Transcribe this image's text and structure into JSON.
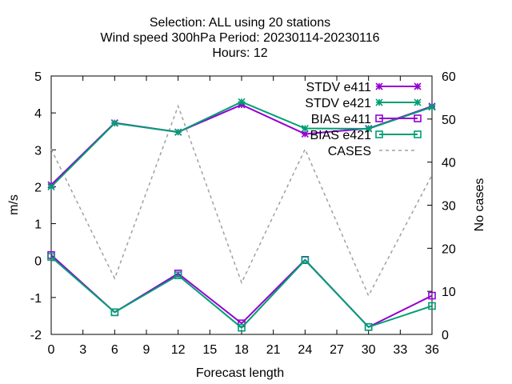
{
  "chart_data": {
    "type": "line",
    "title_lines": [
      "Selection: ALL using    20 stations",
      "Wind speed 300hPa   Period: 20230114-20230116",
      "Hours:  12"
    ],
    "xlabel": "Forecast length",
    "ylabel": "m/s",
    "y2label": "No cases",
    "xlim": [
      0,
      36
    ],
    "ylim": [
      -2,
      5
    ],
    "y2lim": [
      0,
      60
    ],
    "xticks": [
      0,
      3,
      6,
      9,
      12,
      15,
      18,
      21,
      24,
      27,
      30,
      33,
      36
    ],
    "yticks": [
      -2,
      -1,
      0,
      1,
      2,
      3,
      4,
      5
    ],
    "y2ticks": [
      0,
      10,
      20,
      30,
      40,
      50,
      60
    ],
    "grid": false,
    "legend_position": "top-right",
    "x": [
      0,
      6,
      12,
      18,
      24,
      30,
      36
    ],
    "series": [
      {
        "name": "STDV e411",
        "axis": "y",
        "color": "#9400d3",
        "marker": "star",
        "dash": false,
        "values": [
          2.05,
          3.73,
          3.48,
          4.22,
          3.43,
          3.58,
          4.18
        ]
      },
      {
        "name": "STDV e421",
        "axis": "y",
        "color": "#009e73",
        "marker": "star",
        "dash": false,
        "values": [
          2.0,
          3.72,
          3.48,
          4.3,
          3.58,
          3.57,
          4.16
        ]
      },
      {
        "name": "BIAS e411",
        "axis": "y",
        "color": "#9400d3",
        "marker": "square",
        "dash": false,
        "values": [
          0.15,
          -1.4,
          -0.35,
          -1.7,
          0.02,
          -1.8,
          -0.95
        ]
      },
      {
        "name": "BIAS e421",
        "axis": "y",
        "color": "#009e73",
        "marker": "square",
        "dash": false,
        "values": [
          0.1,
          -1.4,
          -0.4,
          -1.82,
          0.01,
          -1.8,
          -1.23
        ]
      },
      {
        "name": "CASES",
        "axis": "y2",
        "color": "#a0a0a0",
        "marker": "none",
        "dash": true,
        "values": [
          43,
          13,
          53,
          12,
          43,
          9,
          37
        ]
      }
    ]
  }
}
